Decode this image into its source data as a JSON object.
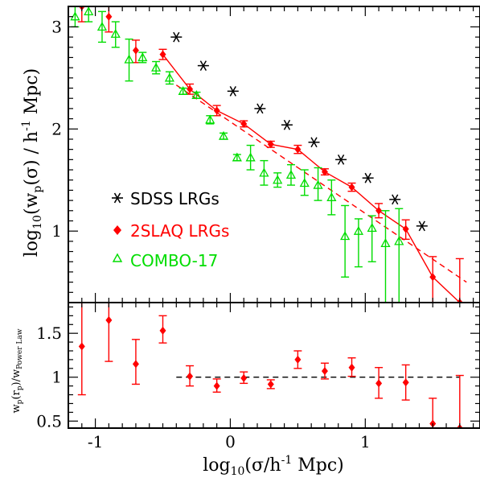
{
  "chart_data": [
    {
      "type": "scatter",
      "panel": "top",
      "xlabel": "log10(σ/h^-1 Mpc)",
      "ylabel": "log10(wp(σ) / h^-1 Mpc)",
      "xlim": [
        -1.2,
        1.85
      ],
      "ylim": [
        0.3,
        3.2
      ],
      "y_ticks": [
        1,
        2,
        3
      ],
      "legend_position": "lower-left",
      "series": [
        {
          "name": "SDSS LRGs",
          "marker": "asterisk",
          "color": "#000000",
          "points": [
            {
              "x": -0.4,
              "y": 2.9
            },
            {
              "x": -0.2,
              "y": 2.62
            },
            {
              "x": 0.02,
              "y": 2.37
            },
            {
              "x": 0.22,
              "y": 2.2
            },
            {
              "x": 0.42,
              "y": 2.04
            },
            {
              "x": 0.62,
              "y": 1.87
            },
            {
              "x": 0.82,
              "y": 1.7
            },
            {
              "x": 1.02,
              "y": 1.52
            },
            {
              "x": 1.22,
              "y": 1.31
            },
            {
              "x": 1.42,
              "y": 1.05
            }
          ]
        },
        {
          "name": "2SLAQ LRGs",
          "marker": "diamond",
          "color": "#ff0000",
          "connected": true,
          "points": [
            {
              "x": -1.1,
              "y": 3.2,
              "lo": 3.05,
              "hi": 3.35
            },
            {
              "x": -0.9,
              "y": 3.1,
              "lo": 2.95,
              "hi": 3.2
            },
            {
              "x": -0.7,
              "y": 2.77,
              "lo": 2.65,
              "hi": 2.87
            },
            {
              "x": -0.5,
              "y": 2.73,
              "lo": 2.68,
              "hi": 2.78
            },
            {
              "x": -0.3,
              "y": 2.39,
              "lo": 2.34,
              "hi": 2.44
            },
            {
              "x": -0.1,
              "y": 2.18,
              "lo": 2.13,
              "hi": 2.23
            },
            {
              "x": 0.1,
              "y": 2.05,
              "lo": 2.02,
              "hi": 2.08
            },
            {
              "x": 0.3,
              "y": 1.85,
              "lo": 1.82,
              "hi": 1.88
            },
            {
              "x": 0.5,
              "y": 1.8,
              "lo": 1.76,
              "hi": 1.84
            },
            {
              "x": 0.7,
              "y": 1.58,
              "lo": 1.55,
              "hi": 1.61
            },
            {
              "x": 0.9,
              "y": 1.43,
              "lo": 1.39,
              "hi": 1.47
            },
            {
              "x": 1.1,
              "y": 1.2,
              "lo": 1.13,
              "hi": 1.27
            },
            {
              "x": 1.3,
              "y": 1.02,
              "lo": 0.92,
              "hi": 1.11
            },
            {
              "x": 1.5,
              "y": 0.55,
              "lo": 0.3,
              "hi": 0.75
            },
            {
              "x": 1.7,
              "y": 0.3,
              "lo": 0.25,
              "hi": 0.73
            }
          ]
        },
        {
          "name": "COMBO-17",
          "marker": "open-triangle",
          "color": "#00dd00",
          "points": [
            {
              "x": -1.15,
              "y": 3.1,
              "lo": 3.0,
              "hi": 3.2
            },
            {
              "x": -1.05,
              "y": 3.15,
              "lo": 3.05,
              "hi": 3.2
            },
            {
              "x": -0.95,
              "y": 3.0,
              "lo": 2.85,
              "hi": 3.15
            },
            {
              "x": -0.85,
              "y": 2.93,
              "lo": 2.8,
              "hi": 3.05
            },
            {
              "x": -0.75,
              "y": 2.68,
              "lo": 2.47,
              "hi": 2.88
            },
            {
              "x": -0.65,
              "y": 2.7,
              "lo": 2.65,
              "hi": 2.75
            },
            {
              "x": -0.55,
              "y": 2.6,
              "lo": 2.54,
              "hi": 2.66
            },
            {
              "x": -0.45,
              "y": 2.5,
              "lo": 2.44,
              "hi": 2.56
            },
            {
              "x": -0.35,
              "y": 2.37,
              "lo": 2.34,
              "hi": 2.4
            },
            {
              "x": -0.25,
              "y": 2.33,
              "lo": 2.3,
              "hi": 2.36
            },
            {
              "x": -0.15,
              "y": 2.09,
              "lo": 2.05,
              "hi": 2.13
            },
            {
              "x": -0.05,
              "y": 1.93,
              "lo": 1.9,
              "hi": 1.96
            },
            {
              "x": 0.05,
              "y": 1.72,
              "lo": 1.69,
              "hi": 1.75
            },
            {
              "x": 0.15,
              "y": 1.72,
              "lo": 1.6,
              "hi": 1.84
            },
            {
              "x": 0.25,
              "y": 1.57,
              "lo": 1.45,
              "hi": 1.69
            },
            {
              "x": 0.35,
              "y": 1.5,
              "lo": 1.43,
              "hi": 1.57
            },
            {
              "x": 0.45,
              "y": 1.55,
              "lo": 1.45,
              "hi": 1.65
            },
            {
              "x": 0.55,
              "y": 1.47,
              "lo": 1.35,
              "hi": 1.6
            },
            {
              "x": 0.65,
              "y": 1.45,
              "lo": 1.3,
              "hi": 1.62
            },
            {
              "x": 0.75,
              "y": 1.33,
              "lo": 1.16,
              "hi": 1.5
            },
            {
              "x": 0.85,
              "y": 0.95,
              "lo": 0.55,
              "hi": 1.25
            },
            {
              "x": 0.95,
              "y": 1.0,
              "lo": 0.65,
              "hi": 1.12
            },
            {
              "x": 1.05,
              "y": 1.03,
              "lo": 0.7,
              "hi": 1.15
            },
            {
              "x": 1.15,
              "y": 0.88,
              "lo": 0.3,
              "hi": 1.2
            },
            {
              "x": 1.25,
              "y": 0.9,
              "lo": 0.3,
              "hi": 1.22
            }
          ]
        }
      ],
      "lines": [
        {
          "style": "solid",
          "color": "#ff0000",
          "follows": "2SLAQ LRGs"
        },
        {
          "style": "dashed",
          "color": "#ff0000",
          "from": {
            "x": -0.4,
            "y": 2.43
          },
          "to": {
            "x": 1.75,
            "y": 0.5
          }
        }
      ]
    },
    {
      "type": "scatter",
      "panel": "bottom",
      "xlabel": "log10(σ/h^-1 Mpc)",
      "ylabel": "wp(rp)/wPower Law",
      "xlim": [
        -1.2,
        1.85
      ],
      "ylim": [
        0.42,
        1.85
      ],
      "x_ticks": [
        -1,
        0,
        1
      ],
      "y_ticks": [
        0.5,
        1,
        1.5
      ],
      "reference_line": {
        "y": 1,
        "x_from": -0.4,
        "x_to": 1.7,
        "style": "dashed",
        "color": "#000000"
      },
      "series": [
        {
          "name": "2SLAQ LRGs",
          "marker": "diamond",
          "color": "#ff0000",
          "points": [
            {
              "x": -1.1,
              "y": 1.35,
              "lo": 0.8,
              "hi": 1.85
            },
            {
              "x": -0.9,
              "y": 1.65,
              "lo": 1.18,
              "hi": 1.85
            },
            {
              "x": -0.7,
              "y": 1.15,
              "lo": 0.92,
              "hi": 1.43
            },
            {
              "x": -0.5,
              "y": 1.53,
              "lo": 1.39,
              "hi": 1.7
            },
            {
              "x": -0.3,
              "y": 1.01,
              "lo": 0.9,
              "hi": 1.13
            },
            {
              "x": -0.1,
              "y": 0.9,
              "lo": 0.83,
              "hi": 0.98
            },
            {
              "x": 0.1,
              "y": 0.99,
              "lo": 0.93,
              "hi": 1.06
            },
            {
              "x": 0.3,
              "y": 0.92,
              "lo": 0.87,
              "hi": 0.97
            },
            {
              "x": 0.5,
              "y": 1.2,
              "lo": 1.1,
              "hi": 1.3
            },
            {
              "x": 0.7,
              "y": 1.07,
              "lo": 0.98,
              "hi": 1.16
            },
            {
              "x": 0.9,
              "y": 1.11,
              "lo": 1.01,
              "hi": 1.22
            },
            {
              "x": 1.1,
              "y": 0.93,
              "lo": 0.76,
              "hi": 1.11
            },
            {
              "x": 1.3,
              "y": 0.94,
              "lo": 0.74,
              "hi": 1.14
            },
            {
              "x": 1.5,
              "y": 0.47,
              "lo": 0.42,
              "hi": 0.76
            },
            {
              "x": 1.7,
              "y": 0.42,
              "lo": 0.42,
              "hi": 1.02
            }
          ]
        }
      ]
    }
  ]
}
